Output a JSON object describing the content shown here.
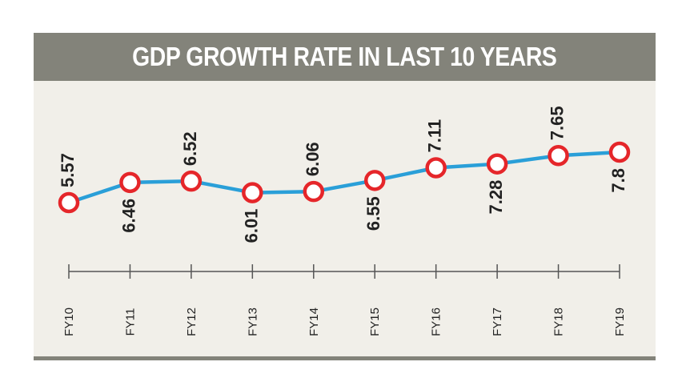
{
  "title": "GDP GROWTH RATE IN LAST 10 YEARS",
  "colors": {
    "header_bg": "#83837a",
    "panel_bg": "#f1efe9",
    "line": "#2a9fd8",
    "marker_stroke": "#e5262a",
    "marker_fill": "#ffffff",
    "text": "#222222"
  },
  "chart_data": {
    "type": "line",
    "title": "GDP GROWTH RATE IN LAST 10 YEARS",
    "categories": [
      "FY10",
      "FY11",
      "FY12",
      "FY13",
      "FY14",
      "FY15",
      "FY16",
      "FY17",
      "FY18",
      "FY19"
    ],
    "values": [
      5.57,
      6.46,
      6.52,
      6.01,
      6.06,
      6.55,
      7.11,
      7.28,
      7.65,
      7.8
    ],
    "labels": [
      "5.57",
      "6.46",
      "6.52",
      "6.01",
      "6.06",
      "6.55",
      "7.11",
      "7.28",
      "7.65",
      "7.8"
    ],
    "label_side": [
      "above",
      "below",
      "above",
      "below",
      "above",
      "below",
      "above",
      "below",
      "above",
      "below"
    ],
    "xlabel": "",
    "ylabel": "",
    "y_axis_shown": false,
    "grid": false,
    "legend": "none"
  }
}
